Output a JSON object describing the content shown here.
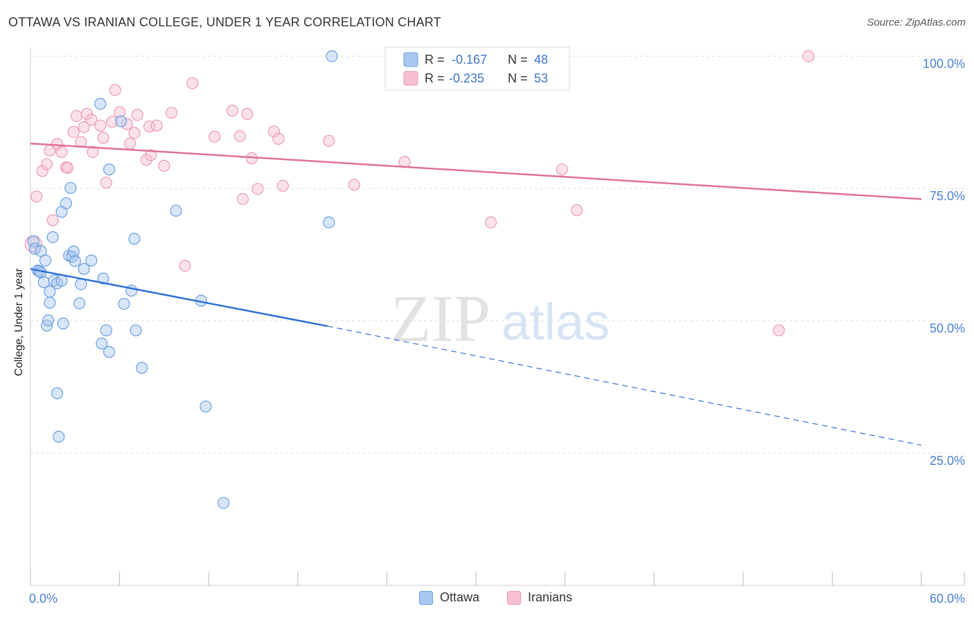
{
  "title": "OTTAWA VS IRANIAN COLLEGE, UNDER 1 YEAR CORRELATION CHART",
  "source": "Source: ZipAtlas.com",
  "watermark": {
    "zip": "ZIP",
    "atlas": "atlas"
  },
  "colors": {
    "ottawa_fill": "#a9c8f0",
    "ottawa_stroke": "#6a9fe0",
    "ottawa_line": "#2e6fd6",
    "iranians_fill": "#f7bfd0",
    "iranians_stroke": "#ec9ab5",
    "iranians_line": "#e0709a",
    "tick_label": "#4a7fd0",
    "grid": "#dddddd"
  },
  "legend_top": {
    "rows": [
      {
        "r_label": "R =",
        "r_value": "-0.167",
        "n_label": "N =",
        "n_value": "48"
      },
      {
        "r_label": "R =",
        "r_value": "-0.235",
        "n_label": "N =",
        "n_value": "53"
      }
    ]
  },
  "legend_bottom": {
    "items": [
      "Ottawa",
      "Iranians"
    ]
  },
  "chart_data": {
    "type": "scatter",
    "title": "OTTAWA VS IRANIAN COLLEGE, UNDER 1 YEAR CORRELATION CHART",
    "xlabel": "",
    "ylabel": "College, Under 1 year",
    "xlim": [
      0,
      60
    ],
    "ylim": [
      0,
      102.5
    ],
    "x_tick_labels": [
      "0.0%",
      "60.0%"
    ],
    "y_ticks": [
      25,
      50,
      75,
      100
    ],
    "y_tick_labels": [
      "25.0%",
      "50.0%",
      "75.0%",
      "100.0%"
    ],
    "grid": true,
    "series": [
      {
        "name": "Ottawa",
        "r": -0.167,
        "n": 48,
        "trend": {
          "x0": 0,
          "y0": 59.8,
          "x1": 20,
          "y1": 49.0,
          "x_dashed_end": 60,
          "y_dashed_end": 26.5
        },
        "points": [
          [
            0.2,
            65
          ],
          [
            0.3,
            63.6
          ],
          [
            0.5,
            59.5
          ],
          [
            0.6,
            59.4
          ],
          [
            0.7,
            59.1
          ],
          [
            0.7,
            63.2
          ],
          [
            0.9,
            57.3
          ],
          [
            1.0,
            61.4
          ],
          [
            1.1,
            49.1
          ],
          [
            1.2,
            50.1
          ],
          [
            1.3,
            53.4
          ],
          [
            1.3,
            55.5
          ],
          [
            1.5,
            65.8
          ],
          [
            1.6,
            57.6
          ],
          [
            1.8,
            57.1
          ],
          [
            1.8,
            36.3
          ],
          [
            1.9,
            28.1
          ],
          [
            2.1,
            70.6
          ],
          [
            2.1,
            57.6
          ],
          [
            2.2,
            49.5
          ],
          [
            2.4,
            72.2
          ],
          [
            2.7,
            75.1
          ],
          [
            2.6,
            62.3
          ],
          [
            2.8,
            62.1
          ],
          [
            2.9,
            63.1
          ],
          [
            3.0,
            61.3
          ],
          [
            3.3,
            53.3
          ],
          [
            3.4,
            56.9
          ],
          [
            3.6,
            59.8
          ],
          [
            4.1,
            61.4
          ],
          [
            4.7,
            91.0
          ],
          [
            4.8,
            45.7
          ],
          [
            4.9,
            58.0
          ],
          [
            5.1,
            48.2
          ],
          [
            5.3,
            44.1
          ],
          [
            5.3,
            78.6
          ],
          [
            6.1,
            87.7
          ],
          [
            6.3,
            53.2
          ],
          [
            6.8,
            55.7
          ],
          [
            7.0,
            65.5
          ],
          [
            7.1,
            48.2
          ],
          [
            7.5,
            41.1
          ],
          [
            9.8,
            70.8
          ],
          [
            11.5,
            53.8
          ],
          [
            11.8,
            33.8
          ],
          [
            13.0,
            15.6
          ],
          [
            20.1,
            68.6
          ],
          [
            20.3,
            100.0
          ]
        ]
      },
      {
        "name": "Iranians",
        "r": -0.235,
        "n": 53,
        "trend": {
          "x0": 0,
          "y0": 83.5,
          "x1": 60,
          "y1": 73.0
        },
        "points": [
          [
            0.2,
            64.5
          ],
          [
            0.4,
            73.5
          ],
          [
            0.8,
            78.3
          ],
          [
            1.1,
            79.6
          ],
          [
            1.3,
            82.2
          ],
          [
            1.5,
            69.0
          ],
          [
            1.8,
            83.4
          ],
          [
            2.1,
            81.9
          ],
          [
            2.4,
            79.0
          ],
          [
            2.5,
            78.9
          ],
          [
            2.9,
            85.7
          ],
          [
            3.1,
            88.7
          ],
          [
            3.4,
            83.8
          ],
          [
            3.6,
            86.6
          ],
          [
            3.8,
            89.1
          ],
          [
            4.1,
            88.0
          ],
          [
            4.2,
            81.9
          ],
          [
            4.7,
            86.9
          ],
          [
            4.9,
            84.6
          ],
          [
            5.1,
            76.1
          ],
          [
            5.5,
            87.6
          ],
          [
            5.7,
            93.6
          ],
          [
            6.0,
            89.4
          ],
          [
            6.5,
            87.2
          ],
          [
            6.7,
            83.5
          ],
          [
            7.0,
            85.5
          ],
          [
            7.2,
            88.9
          ],
          [
            7.8,
            80.4
          ],
          [
            8.0,
            86.7
          ],
          [
            8.1,
            81.3
          ],
          [
            8.5,
            86.9
          ],
          [
            9.0,
            79.3
          ],
          [
            9.5,
            89.3
          ],
          [
            10.4,
            60.4
          ],
          [
            10.9,
            94.9
          ],
          [
            12.4,
            84.8
          ],
          [
            13.6,
            89.7
          ],
          [
            14.1,
            84.9
          ],
          [
            14.3,
            73.0
          ],
          [
            14.6,
            89.1
          ],
          [
            14.9,
            80.7
          ],
          [
            15.3,
            74.9
          ],
          [
            16.4,
            85.8
          ],
          [
            16.7,
            84.4
          ],
          [
            17.0,
            75.5
          ],
          [
            20.1,
            84.0
          ],
          [
            21.8,
            75.7
          ],
          [
            25.2,
            80.0
          ],
          [
            31.0,
            68.6
          ],
          [
            35.8,
            78.6
          ],
          [
            36.8,
            70.9
          ],
          [
            50.4,
            48.2
          ],
          [
            52.4,
            100.0
          ]
        ]
      }
    ]
  }
}
